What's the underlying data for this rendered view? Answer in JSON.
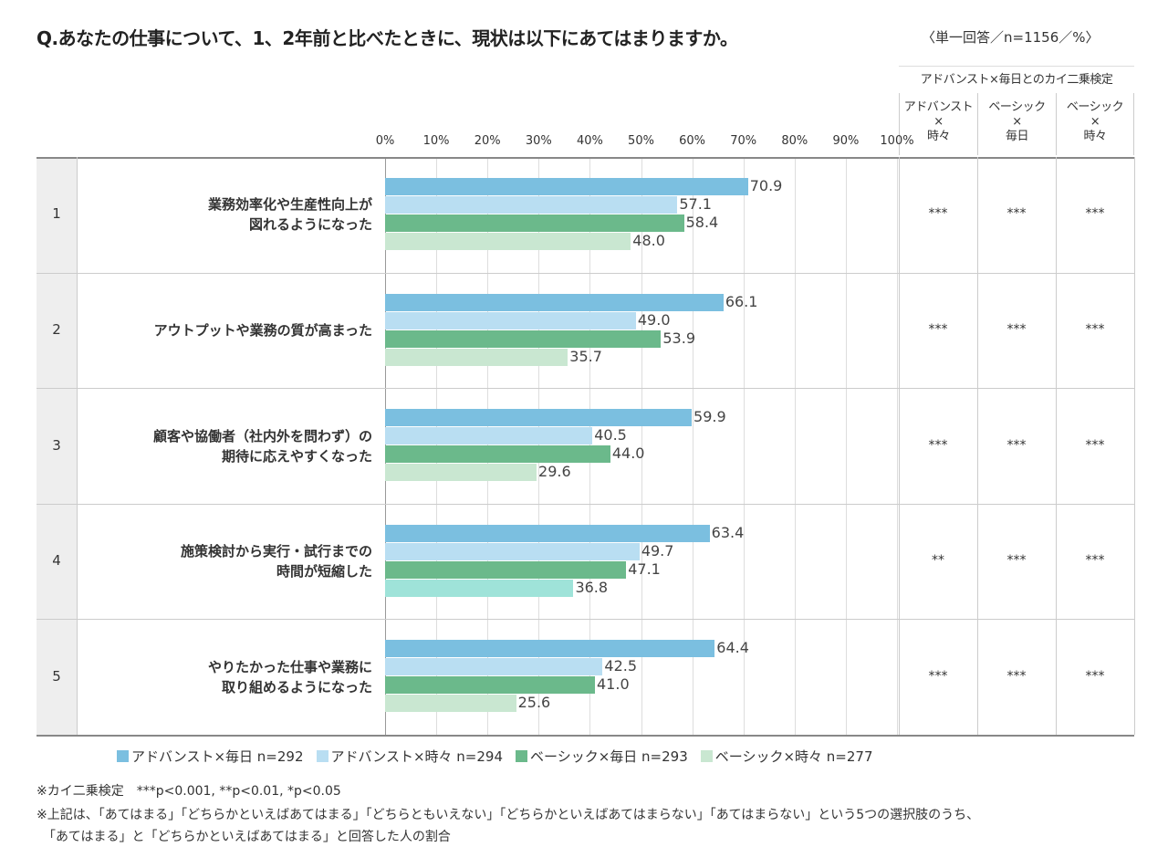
{
  "title": "Q.あなたの仕事について、1、2年前と比べたときに、現状は以下にあてはまりますか。",
  "note": "〈単一回答／n=1156／%〉",
  "chi_header": "アドバンスト×毎日とのカイ二乗検定",
  "chi_columns": [
    "アドバンスト\n×\n時々",
    "ベーシック\n×\n毎日",
    "ベーシック\n×\n時々"
  ],
  "chart_data": {
    "type": "bar",
    "orientation": "horizontal",
    "xlim": [
      0,
      100
    ],
    "x_ticks": [
      "0%",
      "10%",
      "20%",
      "30%",
      "40%",
      "50%",
      "60%",
      "70%",
      "80%",
      "90%",
      "100%"
    ],
    "categories": [
      {
        "num": "1",
        "label": "業務効率化や生産性向上が\n図れるようになった"
      },
      {
        "num": "2",
        "label": "アウトプットや業務の質が高まった"
      },
      {
        "num": "3",
        "label": "顧客や協働者（社内外を問わず）の\n期待に応えやすくなった"
      },
      {
        "num": "4",
        "label": "施策検討から実行・試行までの\n時間が短縮した"
      },
      {
        "num": "5",
        "label": "やりたかった仕事や業務に\n取り組めるようになった"
      }
    ],
    "series": [
      {
        "name": "アドバンスト×毎日 n=292",
        "color": "#7bbfe0",
        "values": [
          70.9,
          66.1,
          59.9,
          63.4,
          64.4
        ]
      },
      {
        "name": "アドバンスト×時々 n=294",
        "color": "#b9def2",
        "values": [
          57.1,
          49.0,
          40.5,
          49.7,
          42.5
        ]
      },
      {
        "name": "ベーシック×毎日 n=293",
        "color": "#6bb98b",
        "values": [
          58.4,
          53.9,
          44.0,
          47.1,
          41.0
        ]
      },
      {
        "name": "ベーシック×時々 n=277",
        "color": "#c9e7d1",
        "values": [
          48.0,
          35.7,
          29.6,
          36.8,
          25.6
        ],
        "alt_colors": {
          "3": "#9fe3d9"
        }
      }
    ],
    "significance": [
      [
        "***",
        "***",
        "***"
      ],
      [
        "***",
        "***",
        "***"
      ],
      [
        "***",
        "***",
        "***"
      ],
      [
        "**",
        "***",
        "***"
      ],
      [
        "***",
        "***",
        "***"
      ]
    ],
    "legend": "bottom"
  },
  "footnotes": [
    "※カイ二乗検定　***p<0.001, **p<0.01, *p<0.05",
    "※上記は、「あてはまる」「どちらかといえばあてはまる」「どちらともいえない」「どちらかといえばあてはまらない」「あてはまらない」という5つの選択肢のうち、",
    "　「あてはまる」と「どちらかといえばあてはまる」と回答した人の割合"
  ]
}
